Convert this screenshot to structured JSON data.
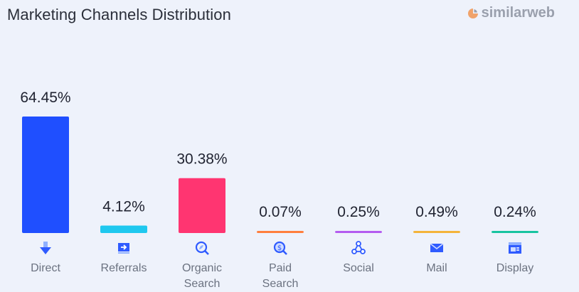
{
  "chart_data": {
    "type": "bar",
    "title": "Marketing Channels Distribution",
    "categories": [
      "Direct",
      "Referrals",
      "Organic Search",
      "Paid Search",
      "Social",
      "Mail",
      "Display"
    ],
    "values": [
      64.45,
      4.12,
      30.38,
      0.07,
      0.25,
      0.49,
      0.24
    ],
    "data_labels": [
      "64.45%",
      "4.12%",
      "30.38%",
      "0.07%",
      "0.25%",
      "0.49%",
      "0.24%"
    ],
    "unit": "%",
    "ylim": [
      0,
      64.45
    ],
    "grid": false,
    "colors": [
      "#1f4fff",
      "#1fc8ef",
      "#ff3571",
      "#ff7f3d",
      "#b45cf0",
      "#f4b43a",
      "#18c4a0"
    ],
    "icons": [
      "direct-arrow-icon",
      "referrals-icon",
      "organic-search-icon",
      "paid-search-icon",
      "social-icon",
      "mail-icon",
      "display-icon"
    ]
  },
  "brand": {
    "name": "similarweb"
  }
}
